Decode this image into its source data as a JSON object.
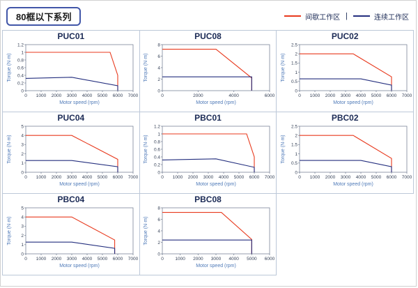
{
  "page": {
    "title": "80框以下系列",
    "legend": [
      {
        "key": "intermittent",
        "label": "间歇工作区",
        "color": "#e8391d"
      },
      {
        "key": "continuous",
        "label": "连续工作区",
        "color": "#232e7e"
      }
    ],
    "legend_separator": "|"
  },
  "chart_data": [
    {
      "type": "line",
      "title": "PUC01",
      "xlabel": "Motor speed (rpm)",
      "ylabel": "Torque (N·m)",
      "xlim": [
        0,
        7000
      ],
      "ylim": [
        0,
        1.2
      ],
      "xticks": [
        0,
        1000,
        2000,
        3000,
        4000,
        5000,
        6000,
        7000
      ],
      "yticks": [
        0,
        0.2,
        0.4,
        0.6,
        0.8,
        1,
        1.2
      ],
      "series": [
        {
          "key": "intermittent",
          "name": "间歇工作区",
          "color": "#e8391d",
          "points": [
            [
              0,
              1.0
            ],
            [
              5500,
              1.0
            ],
            [
              6000,
              0.4
            ],
            [
              6000,
              0
            ]
          ]
        },
        {
          "key": "continuous",
          "name": "连续工作区",
          "color": "#232e7e",
          "points": [
            [
              0,
              0.32
            ],
            [
              3000,
              0.35
            ],
            [
              6000,
              0.13
            ],
            [
              6000,
              0
            ]
          ]
        }
      ]
    },
    {
      "type": "line",
      "title": "PUC08",
      "xlabel": "Motor speed (rpm)",
      "ylabel": "Torque (N·m)",
      "xlim": [
        0,
        6000
      ],
      "ylim": [
        0,
        8
      ],
      "xticks": [
        0,
        2000,
        4000,
        6000
      ],
      "yticks": [
        0,
        2,
        4,
        6,
        8
      ],
      "series": [
        {
          "key": "intermittent",
          "name": "间歇工作区",
          "color": "#e8391d",
          "points": [
            [
              0,
              7.2
            ],
            [
              3000,
              7.2
            ],
            [
              5000,
              2.2
            ],
            [
              5000,
              0
            ]
          ]
        },
        {
          "key": "continuous",
          "name": "连续工作区",
          "color": "#232e7e",
          "points": [
            [
              0,
              2.4
            ],
            [
              5000,
              2.4
            ],
            [
              5000,
              0
            ]
          ]
        }
      ]
    },
    {
      "type": "line",
      "title": "PUC02",
      "xlabel": "Motor speed (rpm)",
      "ylabel": "Torque (N·m)",
      "xlim": [
        0,
        7000
      ],
      "ylim": [
        0,
        2.5
      ],
      "xticks": [
        0,
        1000,
        2000,
        3000,
        4000,
        5000,
        6000,
        7000
      ],
      "yticks": [
        0,
        0.5,
        1,
        1.5,
        2,
        2.5
      ],
      "series": [
        {
          "key": "intermittent",
          "name": "间歇工作区",
          "color": "#e8391d",
          "points": [
            [
              0,
              2.0
            ],
            [
              3500,
              2.0
            ],
            [
              6000,
              0.75
            ],
            [
              6000,
              0
            ]
          ]
        },
        {
          "key": "continuous",
          "name": "连续工作区",
          "color": "#232e7e",
          "points": [
            [
              0,
              0.64
            ],
            [
              4000,
              0.64
            ],
            [
              6000,
              0.3
            ],
            [
              6000,
              0
            ]
          ]
        }
      ]
    },
    {
      "type": "line",
      "title": "PUC04",
      "xlabel": "Motor speed (rpm)",
      "ylabel": "Torque (N·m)",
      "xlim": [
        0,
        7000
      ],
      "ylim": [
        0,
        5
      ],
      "xticks": [
        0,
        1000,
        2000,
        3000,
        4000,
        5000,
        6000,
        7000
      ],
      "yticks": [
        0,
        1,
        2,
        3,
        4,
        5
      ],
      "series": [
        {
          "key": "intermittent",
          "name": "间歇工作区",
          "color": "#e8391d",
          "points": [
            [
              0,
              4.0
            ],
            [
              3000,
              4.0
            ],
            [
              6000,
              1.4
            ],
            [
              6000,
              0
            ]
          ]
        },
        {
          "key": "continuous",
          "name": "连续工作区",
          "color": "#232e7e",
          "points": [
            [
              0,
              1.27
            ],
            [
              3000,
              1.27
            ],
            [
              6000,
              0.6
            ],
            [
              6000,
              0
            ]
          ]
        }
      ]
    },
    {
      "type": "line",
      "title": "PBC01",
      "xlabel": "Motor speed (rpm)",
      "ylabel": "Torque (N·m)",
      "xlim": [
        0,
        7000
      ],
      "ylim": [
        0,
        1.2
      ],
      "xticks": [
        0,
        1000,
        2000,
        3000,
        4000,
        5000,
        6000,
        7000
      ],
      "yticks": [
        0,
        0.2,
        0.4,
        0.6,
        0.8,
        1,
        1.2
      ],
      "series": [
        {
          "key": "intermittent",
          "name": "间歇工作区",
          "color": "#e8391d",
          "points": [
            [
              0,
              1.0
            ],
            [
              5500,
              1.0
            ],
            [
              6000,
              0.4
            ],
            [
              6000,
              0
            ]
          ]
        },
        {
          "key": "continuous",
          "name": "连续工作区",
          "color": "#232e7e",
          "points": [
            [
              0,
              0.32
            ],
            [
              3500,
              0.35
            ],
            [
              6000,
              0.13
            ],
            [
              6000,
              0
            ]
          ]
        }
      ]
    },
    {
      "type": "line",
      "title": "PBC02",
      "xlabel": "Motor speed (rpm)",
      "ylabel": "Torque (N·m)",
      "xlim": [
        0,
        7000
      ],
      "ylim": [
        0,
        2.5
      ],
      "xticks": [
        0,
        1000,
        2000,
        3000,
        4000,
        5000,
        6000,
        7000
      ],
      "yticks": [
        0,
        0.5,
        1,
        1.5,
        2,
        2.5
      ],
      "series": [
        {
          "key": "intermittent",
          "name": "间歇工作区",
          "color": "#e8391d",
          "points": [
            [
              0,
              2.0
            ],
            [
              3500,
              2.0
            ],
            [
              6000,
              0.75
            ],
            [
              6000,
              0
            ]
          ]
        },
        {
          "key": "continuous",
          "name": "连续工作区",
          "color": "#232e7e",
          "points": [
            [
              0,
              0.64
            ],
            [
              4000,
              0.64
            ],
            [
              6000,
              0.3
            ],
            [
              6000,
              0
            ]
          ]
        }
      ]
    },
    {
      "type": "line",
      "title": "PBC04",
      "xlabel": "Motor speed (rpm)",
      "ylabel": "Torque (N·m)",
      "xlim": [
        0,
        7000
      ],
      "ylim": [
        0,
        5
      ],
      "xticks": [
        0,
        1000,
        2000,
        3000,
        4000,
        5000,
        6000,
        7000
      ],
      "yticks": [
        0,
        1,
        2,
        3,
        4,
        5
      ],
      "series": [
        {
          "key": "intermittent",
          "name": "间歇工作区",
          "color": "#e8391d",
          "points": [
            [
              0,
              4.0
            ],
            [
              3000,
              4.0
            ],
            [
              5800,
              1.5
            ],
            [
              5800,
              0
            ]
          ]
        },
        {
          "key": "continuous",
          "name": "连续工作区",
          "color": "#232e7e",
          "points": [
            [
              0,
              1.27
            ],
            [
              3000,
              1.27
            ],
            [
              5800,
              0.6
            ],
            [
              5800,
              0
            ]
          ]
        }
      ]
    },
    {
      "type": "line",
      "title": "PBC08",
      "xlabel": "Motor speed (rpm)",
      "ylabel": "Torque (N·m)",
      "xlim": [
        0,
        6000
      ],
      "ylim": [
        0,
        8
      ],
      "xticks": [
        0,
        1000,
        2000,
        3000,
        4000,
        5000,
        6000
      ],
      "yticks": [
        0,
        2,
        4,
        6,
        8
      ],
      "series": [
        {
          "key": "intermittent",
          "name": "间歇工作区",
          "color": "#e8391d",
          "points": [
            [
              0,
              7.2
            ],
            [
              3300,
              7.2
            ],
            [
              5000,
              2.5
            ],
            [
              5000,
              0
            ]
          ]
        },
        {
          "key": "continuous",
          "name": "连续工作区",
          "color": "#232e7e",
          "points": [
            [
              0,
              2.4
            ],
            [
              5000,
              2.4
            ],
            [
              5000,
              0
            ]
          ]
        }
      ]
    }
  ]
}
